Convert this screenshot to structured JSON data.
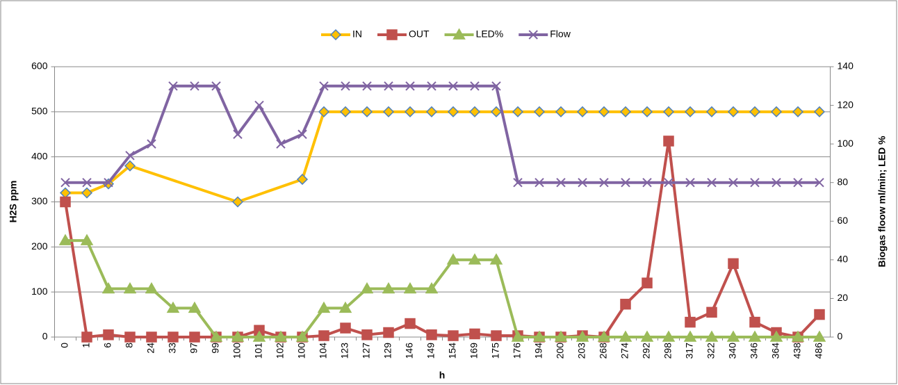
{
  "chart_data": {
    "type": "line",
    "x_label": "h",
    "y_label": "H2S ppm",
    "y2_label": "Biogas floow ml/min; LED %",
    "categories": [
      "0",
      "1",
      "6",
      "8",
      "24",
      "33",
      "97",
      "99",
      "100",
      "101",
      "102",
      "100",
      "104",
      "123",
      "127",
      "129",
      "146",
      "149",
      "154",
      "169",
      "175",
      "176",
      "194",
      "200",
      "203",
      "268",
      "274",
      "292",
      "298",
      "317",
      "322",
      "340",
      "346",
      "364",
      "438",
      "486"
    ],
    "ylim": [
      0,
      600
    ],
    "yticks": [
      0,
      100,
      200,
      300,
      400,
      500,
      600
    ],
    "y2lim": [
      0,
      140
    ],
    "y2ticks": [
      0,
      20,
      40,
      60,
      80,
      100,
      120,
      140
    ],
    "grid": true,
    "legend": "top",
    "connect_gaps": true,
    "series": [
      {
        "name": "IN",
        "color": "#FFC000",
        "marker": "diamond",
        "marker_fill": "#FFC000",
        "marker_stroke": "#4F81BD",
        "values": [
          320,
          320,
          340,
          380,
          null,
          null,
          null,
          null,
          300,
          null,
          null,
          350,
          500,
          500,
          500,
          500,
          500,
          500,
          500,
          500,
          500,
          500,
          500,
          500,
          500,
          500,
          500,
          500,
          500,
          500,
          500,
          500,
          500,
          500,
          500,
          500
        ]
      },
      {
        "name": "OUT",
        "color": "#C0504D",
        "marker": "square",
        "marker_fill": "#C0504D",
        "marker_stroke": "#C0504D",
        "values": [
          300,
          0,
          5,
          0,
          0,
          0,
          0,
          0,
          0,
          15,
          0,
          0,
          3,
          20,
          5,
          10,
          30,
          5,
          3,
          7,
          3,
          3,
          0,
          0,
          3,
          0,
          73,
          120,
          435,
          33,
          55,
          163,
          33,
          10,
          0,
          50
        ]
      },
      {
        "name": "LED%",
        "color": "#9BBB59",
        "marker": "triangle",
        "marker_fill": "#9BBB59",
        "marker_stroke": "#9BBB59",
        "axis": "y2",
        "values": [
          50,
          50,
          25,
          25,
          25,
          15,
          15,
          0,
          0,
          0,
          0,
          0,
          15,
          15,
          25,
          25,
          25,
          25,
          40,
          40,
          40,
          0,
          0,
          0,
          0,
          0,
          0,
          0,
          0,
          0,
          0,
          0,
          0,
          0,
          0,
          0
        ]
      },
      {
        "name": "Flow",
        "color": "#8064A2",
        "marker": "x",
        "marker_fill": "none",
        "marker_stroke": "#8064A2",
        "axis": "y2",
        "values": [
          80,
          80,
          80,
          94,
          100,
          130,
          130,
          130,
          105,
          120,
          100,
          105,
          130,
          130,
          130,
          130,
          130,
          130,
          130,
          130,
          130,
          80,
          80,
          80,
          80,
          80,
          80,
          80,
          80,
          80,
          80,
          80,
          80,
          80,
          80,
          80
        ]
      }
    ]
  }
}
